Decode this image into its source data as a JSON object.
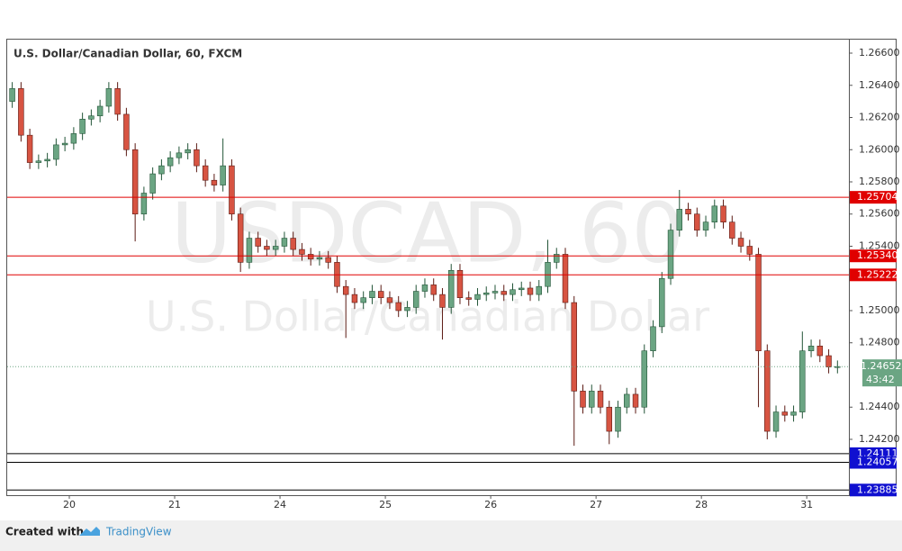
{
  "chart_data": {
    "type": "candlestick",
    "title": "U.S. Dollar/Canadian Dollar, 60, FXCM",
    "watermark": "USDCAD, 60",
    "watermark_subtitle": "U.S. Dollar/Canadian Dollar",
    "footer_text": "Created with",
    "footer_brand": "TradingView",
    "up_color": "#6ba583",
    "down_color": "#d75442",
    "xlim": [
      -14.15,
      177.6
    ],
    "xticks": [
      {
        "value": 0,
        "label": "20"
      },
      {
        "value": 24,
        "label": "21"
      },
      {
        "value": 48,
        "label": "24"
      },
      {
        "value": 72,
        "label": "25"
      },
      {
        "value": 96,
        "label": "26"
      },
      {
        "value": 120,
        "label": "27"
      },
      {
        "value": 144,
        "label": "28"
      },
      {
        "value": 168,
        "label": "31"
      }
    ],
    "ylim": [
      1.23853,
      1.26684
    ],
    "yticks": [
      {
        "value": 1.266,
        "label": "1.26600"
      },
      {
        "value": 1.264,
        "label": "1.26400"
      },
      {
        "value": 1.262,
        "label": "1.26200"
      },
      {
        "value": 1.26,
        "label": "1.26000"
      },
      {
        "value": 1.258,
        "label": "1.25800"
      },
      {
        "value": 1.256,
        "label": "1.25600"
      },
      {
        "value": 1.254,
        "label": "1.25400"
      },
      {
        "value": 1.25,
        "label": "1.25000"
      },
      {
        "value": 1.248,
        "label": "1.24800"
      },
      {
        "value": 1.244,
        "label": "1.24400"
      },
      {
        "value": 1.242,
        "label": "1.24200"
      }
    ],
    "levels": [
      {
        "value": 1.25704,
        "label": "1.25704",
        "color": "#e00000",
        "label_color": "#e00000"
      },
      {
        "value": 1.2534,
        "label": "1.25340",
        "color": "#e00000",
        "label_color": "#e00000"
      },
      {
        "value": 1.25222,
        "label": "1.25222",
        "color": "#e00000",
        "label_color": "#e00000"
      },
      {
        "value": 1.24111,
        "label": "1.24111",
        "color": "#000000",
        "label_color": "#1010d0"
      },
      {
        "value": 1.24057,
        "label": "1.24057",
        "color": "#000000",
        "label_color": "#1010d0"
      },
      {
        "value": 1.23885,
        "label": "1.23885",
        "color": "#000000",
        "label_color": "#1010d0"
      }
    ],
    "last_price": {
      "value": 1.24652,
      "label": "1.24652",
      "countdown": "43:42",
      "color": "#6ba583"
    },
    "x": [
      -13,
      -11,
      -9,
      -7,
      -5,
      -3,
      -1,
      1,
      3,
      5,
      7,
      9,
      11,
      13,
      15,
      17,
      19,
      21,
      23,
      25,
      27,
      29,
      31,
      33,
      35,
      37,
      39,
      41,
      43,
      45,
      47,
      49,
      51,
      53,
      55,
      57,
      59,
      61,
      63,
      65,
      67,
      69,
      71,
      73,
      75,
      77,
      79,
      81,
      83,
      85,
      87,
      89,
      91,
      93,
      95,
      97,
      99,
      101,
      103,
      105,
      107,
      109,
      111,
      113,
      115,
      117,
      119,
      121,
      123,
      125,
      127,
      129,
      131,
      133,
      135,
      137,
      139,
      141,
      143,
      145,
      147,
      149,
      151,
      153,
      155,
      157,
      159,
      161,
      163,
      165,
      167,
      169,
      171,
      173,
      175
    ],
    "open": [
      1.263,
      1.2638,
      1.2609,
      1.2592,
      1.2593,
      1.2594,
      1.2603,
      1.2604,
      1.261,
      1.2619,
      1.2621,
      1.2627,
      1.2638,
      1.2622,
      1.26,
      1.256,
      1.2573,
      1.2585,
      1.259,
      1.2595,
      1.2598,
      1.26,
      1.259,
      1.2581,
      1.2578,
      1.259,
      1.256,
      1.253,
      1.2545,
      1.254,
      1.2538,
      1.254,
      1.2545,
      1.2538,
      1.2535,
      1.2532,
      1.2533,
      1.253,
      1.2515,
      1.251,
      1.2505,
      1.2508,
      1.2512,
      1.2508,
      1.2505,
      1.25,
      1.2502,
      1.2512,
      1.2516,
      1.251,
      1.2502,
      1.2525,
      1.2508,
      1.2507,
      1.251,
      1.2511,
      1.2512,
      1.251,
      1.2513,
      1.2514,
      1.251,
      1.2515,
      1.253,
      1.2535,
      1.2505,
      1.245,
      1.244,
      1.245,
      1.244,
      1.2425,
      1.244,
      1.2448,
      1.244,
      1.2475,
      1.249,
      1.252,
      1.255,
      1.2563,
      1.256,
      1.255,
      1.2555,
      1.2565,
      1.2555,
      1.2545,
      1.254,
      1.2535,
      1.2475,
      1.2425,
      1.2437,
      1.2435,
      1.2437,
      1.2475,
      1.2478,
      1.2472,
      1.2465
    ],
    "high": [
      1.2642,
      1.2642,
      1.2613,
      1.2597,
      1.2598,
      1.2607,
      1.2608,
      1.2614,
      1.2623,
      1.2625,
      1.2631,
      1.2642,
      1.2642,
      1.2626,
      1.2604,
      1.2577,
      1.2589,
      1.2594,
      1.2599,
      1.2602,
      1.2604,
      1.2604,
      1.2594,
      1.2585,
      1.2607,
      1.2594,
      1.2564,
      1.2549,
      1.2549,
      1.2544,
      1.2544,
      1.2549,
      1.2549,
      1.2542,
      1.2539,
      1.2537,
      1.2537,
      1.2534,
      1.2519,
      1.2514,
      1.2512,
      1.2516,
      1.2516,
      1.2512,
      1.2509,
      1.2506,
      1.2516,
      1.252,
      1.252,
      1.2514,
      1.2529,
      1.2529,
      1.2512,
      1.2514,
      1.2515,
      1.2516,
      1.2516,
      1.2517,
      1.2518,
      1.2518,
      1.2519,
      1.2544,
      1.2539,
      1.2539,
      1.2509,
      1.2454,
      1.2454,
      1.2454,
      1.2444,
      1.2444,
      1.2452,
      1.2452,
      1.2479,
      1.2494,
      1.2524,
      1.2554,
      1.2575,
      1.2567,
      1.2564,
      1.2559,
      1.2569,
      1.2569,
      1.2559,
      1.2549,
      1.2544,
      1.2539,
      1.2479,
      1.2441,
      1.2441,
      1.2441,
      1.2487,
      1.2482,
      1.2482,
      1.2476,
      1.2469
    ],
    "low": [
      1.2626,
      1.2605,
      1.2588,
      1.2588,
      1.2589,
      1.259,
      1.2599,
      1.26,
      1.2606,
      1.2615,
      1.2617,
      1.2623,
      1.2618,
      1.2596,
      1.2543,
      1.2556,
      1.2569,
      1.2581,
      1.2586,
      1.2591,
      1.2594,
      1.2586,
      1.2577,
      1.2574,
      1.2574,
      1.2556,
      1.2524,
      1.2526,
      1.2536,
      1.2534,
      1.2534,
      1.2536,
      1.2534,
      1.2531,
      1.2528,
      1.2528,
      1.2526,
      1.2511,
      1.2483,
      1.2501,
      1.2501,
      1.2504,
      1.2504,
      1.2501,
      1.2496,
      1.2496,
      1.2498,
      1.2508,
      1.2506,
      1.2482,
      1.2498,
      1.2504,
      1.2503,
      1.2503,
      1.2506,
      1.2507,
      1.2506,
      1.2506,
      1.2509,
      1.2506,
      1.2506,
      1.2511,
      1.2526,
      1.2501,
      1.2416,
      1.2436,
      1.2436,
      1.2436,
      1.2417,
      1.2421,
      1.2436,
      1.2436,
      1.2436,
      1.2471,
      1.2486,
      1.2516,
      1.2546,
      1.2556,
      1.2546,
      1.2546,
      1.2551,
      1.2551,
      1.2541,
      1.2536,
      1.2531,
      1.244,
      1.242,
      1.2421,
      1.2431,
      1.2431,
      1.2433,
      1.2471,
      1.2468,
      1.2461,
      1.2461
    ],
    "close": [
      1.2638,
      1.2609,
      1.2592,
      1.2593,
      1.2594,
      1.2603,
      1.2604,
      1.261,
      1.2619,
      1.2621,
      1.2627,
      1.2638,
      1.2622,
      1.26,
      1.256,
      1.2573,
      1.2585,
      1.259,
      1.2595,
      1.2598,
      1.26,
      1.259,
      1.2581,
      1.2578,
      1.259,
      1.256,
      1.253,
      1.2545,
      1.254,
      1.2538,
      1.254,
      1.2545,
      1.2538,
      1.2535,
      1.2532,
      1.2533,
      1.253,
      1.2515,
      1.251,
      1.2505,
      1.2508,
      1.2512,
      1.2508,
      1.2505,
      1.25,
      1.2502,
      1.2512,
      1.2516,
      1.251,
      1.2502,
      1.2525,
      1.2508,
      1.2507,
      1.251,
      1.2511,
      1.2512,
      1.251,
      1.2513,
      1.2514,
      1.251,
      1.2515,
      1.253,
      1.2535,
      1.2505,
      1.245,
      1.244,
      1.245,
      1.244,
      1.2425,
      1.244,
      1.2448,
      1.244,
      1.2475,
      1.249,
      1.252,
      1.255,
      1.2563,
      1.256,
      1.255,
      1.2555,
      1.2565,
      1.2555,
      1.2545,
      1.254,
      1.2535,
      1.2475,
      1.2425,
      1.2437,
      1.2435,
      1.2437,
      1.2475,
      1.2478,
      1.2472,
      1.2465,
      1.24652
    ]
  }
}
